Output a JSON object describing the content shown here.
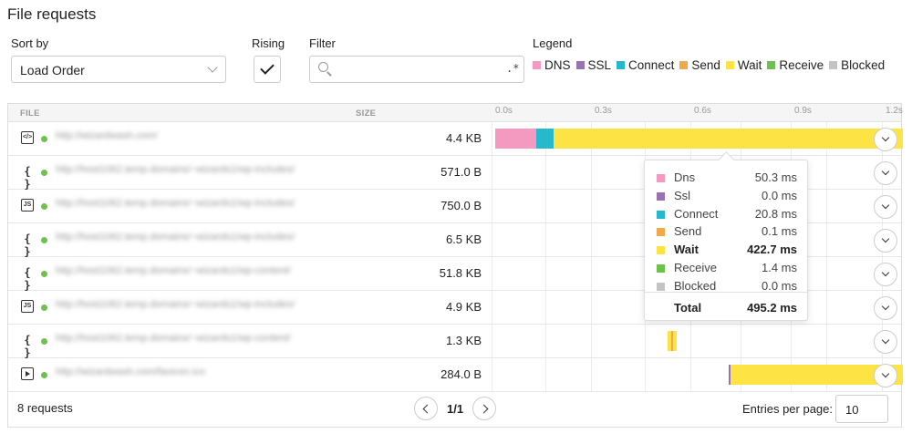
{
  "title": "File requests",
  "controls": {
    "sort_label": "Sort by",
    "sort_value": "Load Order",
    "rising_label": "Rising",
    "filter_label": "Filter",
    "filter_placeholder": "",
    "regex_glyph": ".*"
  },
  "legend": {
    "label": "Legend",
    "items": [
      {
        "name": "DNS",
        "color": "#f49ac1"
      },
      {
        "name": "SSL",
        "color": "#9b72b0"
      },
      {
        "name": "Connect",
        "color": "#26b8cc"
      },
      {
        "name": "Send",
        "color": "#f0a84a"
      },
      {
        "name": "Wait",
        "color": "#fde444"
      },
      {
        "name": "Receive",
        "color": "#6cc24a"
      },
      {
        "name": "Blocked",
        "color": "#c4c4c4"
      }
    ]
  },
  "table": {
    "col_file": "FILE",
    "col_size": "SIZE",
    "ticks": [
      "0.0s",
      "0.3s",
      "0.6s",
      "0.9s",
      "1.2s"
    ],
    "rows": [
      {
        "icon": "html-file-icon",
        "url": "http://wizardwash.com/",
        "size": "4.4 KB"
      },
      {
        "icon": "json-file-icon",
        "url": "http://host1062.temp.domains/~wizards1/wp-includes/",
        "size": "571.0 B"
      },
      {
        "icon": "js-file-icon",
        "url": "http://host1062.temp.domains/~wizards1/wp-includes/",
        "size": "750.0 B"
      },
      {
        "icon": "json-file-icon",
        "url": "http://host1062.temp.domains/~wizards1/wp-includes/",
        "size": "6.5 KB"
      },
      {
        "icon": "json-file-icon",
        "url": "http://host1062.temp.domains/~wizards1/wp-content/",
        "size": "51.8 KB"
      },
      {
        "icon": "js-file-icon",
        "url": "http://host1062.temp.domains/~wizards1/wp-includes/",
        "size": "4.9 KB"
      },
      {
        "icon": "json-file-icon",
        "url": "http://host1062.temp.domains/~wizards1/wp-content/",
        "size": "1.3 KB"
      },
      {
        "icon": "media-file-icon",
        "url": "http://wizardwash.com/favicon.ico",
        "size": "284.0 B"
      }
    ]
  },
  "tooltip": {
    "rows": [
      {
        "label": "Dns",
        "value": "50.3 ms",
        "color": "#f49ac1"
      },
      {
        "label": "Ssl",
        "value": "0.0 ms",
        "color": "#9b72b0"
      },
      {
        "label": "Connect",
        "value": "20.8 ms",
        "color": "#26b8cc"
      },
      {
        "label": "Send",
        "value": "0.1 ms",
        "color": "#f0a84a"
      },
      {
        "label": "Wait",
        "value": "422.7 ms",
        "color": "#fde444"
      },
      {
        "label": "Receive",
        "value": "1.4 ms",
        "color": "#6cc24a"
      },
      {
        "label": "Blocked",
        "value": "0.0 ms",
        "color": "#c4c4c4"
      }
    ],
    "total_label": "Total",
    "total_value": "495.2 ms"
  },
  "footer": {
    "count": "8 requests",
    "page": "1/1",
    "entries_label": "Entries per page:",
    "entries_value": "10"
  }
}
